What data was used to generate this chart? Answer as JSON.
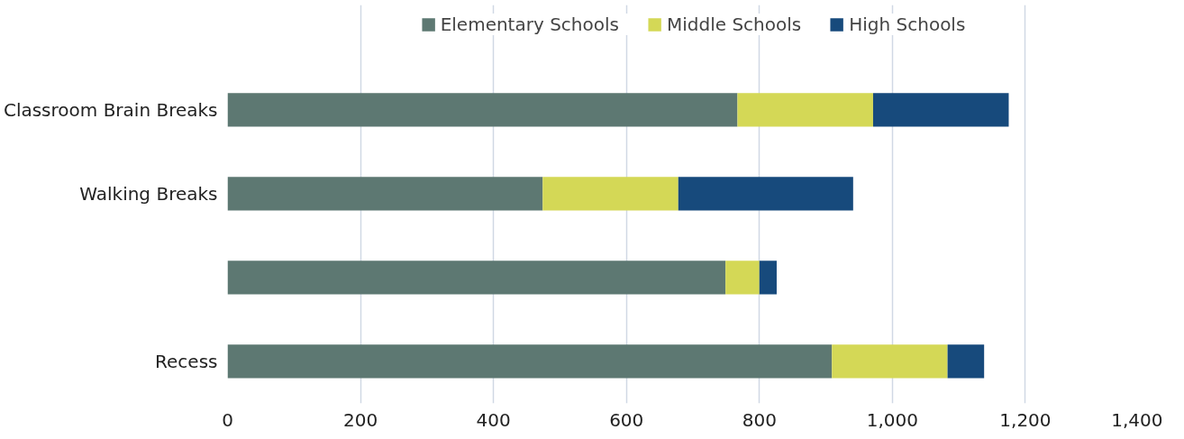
{
  "chart_data": {
    "type": "bar",
    "orientation": "horizontal",
    "stacked": true,
    "categories": [
      "Classroom Brain Breaks",
      "Walking Breaks",
      null,
      "Recess"
    ],
    "series": [
      {
        "name": "Elementary Schools",
        "color": "#5d7872",
        "values": [
          767,
          474,
          749,
          909
        ]
      },
      {
        "name": "Middle Schools",
        "color": "#d4d856",
        "values": [
          204,
          204,
          51,
          174
        ]
      },
      {
        "name": "High Schools",
        "color": "#174a7c",
        "values": [
          204,
          263,
          26,
          55
        ]
      }
    ],
    "xlim": [
      0,
      1400
    ],
    "xticks": [
      {
        "value": 0,
        "label": "0"
      },
      {
        "value": 200,
        "label": "200"
      },
      {
        "value": 400,
        "label": "400"
      },
      {
        "value": 600,
        "label": "600"
      },
      {
        "value": 800,
        "label": "800"
      },
      {
        "value": 1000,
        "label": "1,000"
      },
      {
        "value": 1200,
        "label": "1,200"
      },
      {
        "value": 1400,
        "label": "1,400"
      }
    ],
    "grid": "x",
    "legend": "top"
  }
}
